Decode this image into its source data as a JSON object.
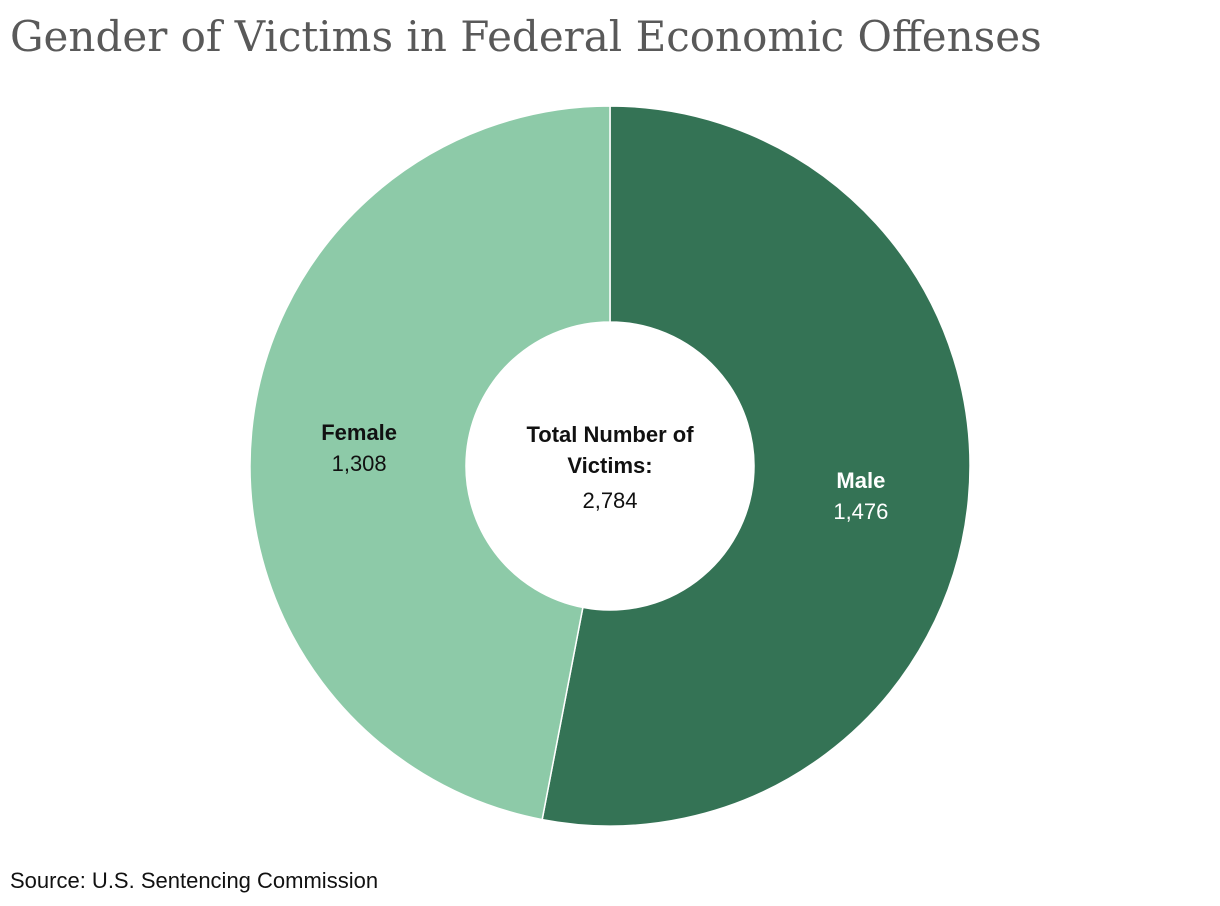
{
  "title": "Gender of Victims in Federal Economic Offenses",
  "source": "Source: U.S. Sentencing Commission",
  "chart_data": {
    "type": "pie",
    "variant": "donut",
    "categories": [
      "Male",
      "Female"
    ],
    "values": [
      1476,
      1308
    ],
    "value_labels": [
      "1,476",
      "1,308"
    ],
    "colors": [
      "#347355",
      "#8dcaa8"
    ],
    "label_colors": [
      "#ffffff",
      "#111111"
    ],
    "center_label": {
      "line1": "Total Number of",
      "line2": "Victims:",
      "value": "2,784"
    },
    "start": "top",
    "direction": "clockwise",
    "legend": "none"
  }
}
